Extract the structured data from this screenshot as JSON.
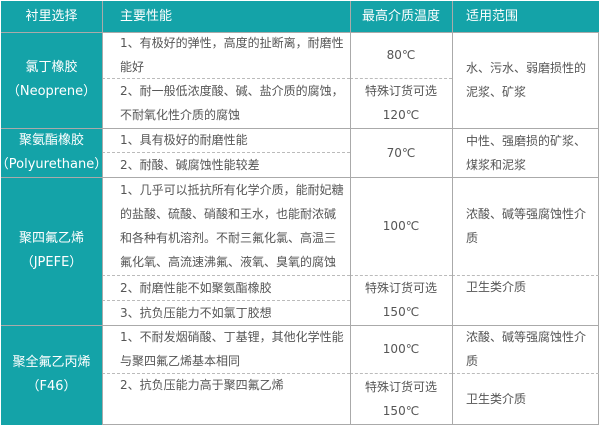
{
  "header": [
    "衬里选择",
    "主要性能",
    "最高介质温度",
    "适用范围"
  ],
  "rows": [
    {
      "lining": [
        "氯丁橡胶",
        "（Neoprene）"
      ],
      "props": [
        [
          "1、有极好的弹性，高度的扯断离，耐磨性",
          "能好"
        ],
        [
          "2、耐一般低浓度酸、碱、盐介质的腐蚀，",
          "不耐氧化性介质的腐蚀"
        ]
      ],
      "temp": [
        [
          "80℃"
        ],
        [
          "特殊订货可选",
          "120℃"
        ]
      ],
      "scope": [
        [
          "水、污水、弱磨损性的",
          "泥浆、矿浆"
        ]
      ]
    },
    {
      "lining": [
        "聚氨酯橡胶",
        "（Polyurethane）"
      ],
      "props": [
        [
          "1、具有极好的耐磨性能"
        ],
        [
          "2、耐酸、碱腐蚀性能较差"
        ]
      ],
      "temp": [
        [
          "70℃"
        ]
      ],
      "scope": [
        [
          "中性、强磨损的矿浆、",
          "煤浆和泥浆"
        ]
      ]
    },
    {
      "lining": [
        "聚四氟乙烯",
        "（JPEFE）"
      ],
      "props": [
        [
          "1、几乎可以抵抗所有化学介质，能耐妃糖",
          "的盐酸、硫酸、硝酸和王水，也能耐浓碱",
          "和各种有机溶剂。不耐三氟化氯、高温三",
          "氟化氧、高流速沸氟、液氧、臭氧的腐蚀"
        ],
        [
          "2、耐磨性能不如聚氨酯橡胶"
        ],
        [
          "3、抗负压能力不如氯丁胶想"
        ]
      ],
      "temp": [
        [
          "100℃"
        ],
        [
          "特殊订货可选",
          "150℃"
        ]
      ],
      "scope": [
        [
          "浓酸、碱等强腐蚀性介",
          "质"
        ],
        [
          "卫生类介质"
        ]
      ]
    },
    {
      "lining": [
        "聚全氟乙丙烯",
        "（F46）"
      ],
      "props": [
        [
          "1、不耐发烟硝酸、丁基锂，其他化学性能",
          "与聚四氟乙烯基本相同"
        ],
        [
          "2、抗负压能力高于聚四氟乙烯"
        ]
      ],
      "temp": [
        [
          "100℃"
        ],
        [
          "特殊订货可选",
          "150℃"
        ]
      ],
      "scope": [
        [
          "浓酸、碱等强腐蚀性介",
          "质"
        ],
        [
          "卫生类介质"
        ]
      ]
    }
  ],
  "colors": {
    "accent": "#14a3a8",
    "border": "#aaaaaa"
  }
}
